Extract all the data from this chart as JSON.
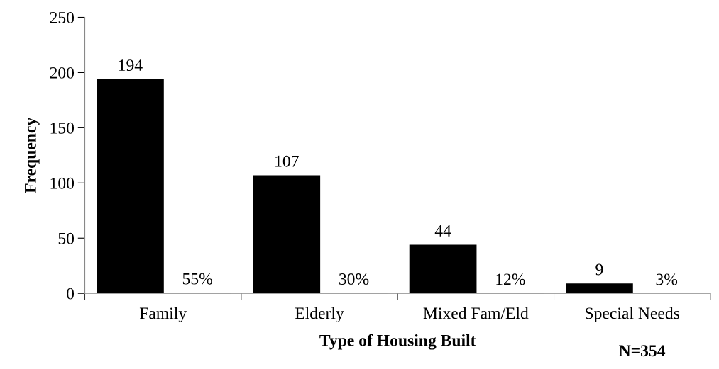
{
  "chart_data": {
    "type": "bar",
    "categories": [
      "Family",
      "Elderly",
      "Mixed Fam/Eld",
      "Special Needs"
    ],
    "series": [
      {
        "color": "#000000",
        "values": [
          194,
          107,
          44,
          9
        ],
        "value_labels": [
          "194",
          "107",
          "44",
          "9"
        ]
      },
      {
        "color": "#000000",
        "values": [
          0.55,
          0.3,
          0.12,
          0.03
        ],
        "value_labels": [
          "55%",
          "30%",
          "12%",
          "3%"
        ]
      }
    ],
    "xlabel": "Type of Housing Built",
    "ylabel": "Frequency",
    "annotations": [
      "N=354"
    ],
    "ylim": [
      0,
      250
    ],
    "yticks": [
      0,
      50,
      100,
      150,
      200,
      250
    ],
    "grid": false,
    "legend": false
  }
}
